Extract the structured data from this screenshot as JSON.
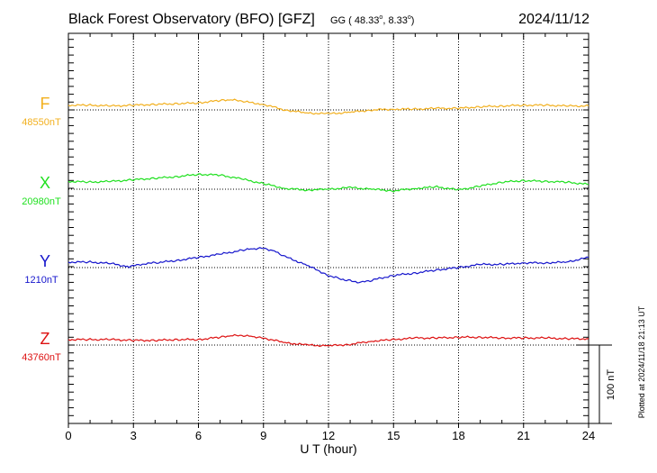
{
  "header": {
    "title": "Black Forest Observatory (BFO)  [GFZ]",
    "coords_prefix": "GG ( 48.33",
    "coords_mid": ",  8.33",
    "coords_suffix": ")",
    "degree_symbol": "o",
    "date": "2024/11/12"
  },
  "side_note": "Plotted at 2024/11/18 21:13 UT",
  "scale_label": "100 nT",
  "colors": {
    "F": "#f2b01f",
    "X": "#1fe01f",
    "Y": "#1515cc",
    "Z": "#dd1111",
    "axis": "#000000"
  },
  "chart_data": {
    "type": "line",
    "xlabel": "U T (hour)",
    "xlim": [
      0,
      24
    ],
    "x_ticks": [
      "0",
      "3",
      "6",
      "9",
      "12",
      "15",
      "18",
      "21",
      "24"
    ],
    "y_units_per_nt": "100 nT scale bar",
    "series": [
      {
        "name": "F",
        "baseline_label": "48550nT",
        "baseline_nt": 48550,
        "x": [
          0,
          1,
          2,
          3,
          4,
          5,
          6,
          7,
          7.5,
          8,
          9,
          10,
          11,
          12,
          13,
          14,
          15,
          16,
          17,
          18,
          19,
          20,
          21,
          22,
          23,
          24
        ],
        "y": [
          48556,
          48556,
          48555,
          48556,
          48557,
          48558,
          48559,
          48562,
          48563,
          48561,
          48557,
          48550,
          48546,
          48545,
          48547,
          48550,
          48551,
          48551,
          48552,
          48552,
          48554,
          48555,
          48556,
          48556,
          48555,
          48555
        ]
      },
      {
        "name": "X",
        "baseline_label": "20980nT",
        "baseline_nt": 20980,
        "x": [
          0,
          1,
          2,
          3,
          4,
          5,
          6,
          7,
          8,
          9,
          10,
          11,
          12,
          13,
          14,
          15,
          16,
          17,
          18,
          19,
          20,
          21,
          22,
          23,
          24
        ],
        "y": [
          20990,
          20989,
          20990,
          20992,
          20994,
          20996,
          20999,
          20998,
          20993,
          20987,
          20981,
          20979,
          20980,
          20982,
          20980,
          20978,
          20981,
          20983,
          20979,
          20984,
          20989,
          20991,
          20990,
          20989,
          20986
        ]
      },
      {
        "name": "Y",
        "baseline_label": "1210nT",
        "baseline_nt": 1210,
        "x": [
          0,
          1,
          2,
          2.8,
          3.5,
          4,
          5,
          6,
          7,
          8,
          8.5,
          9,
          9.5,
          10,
          11,
          12,
          12.5,
          13,
          13.5,
          14,
          15,
          16,
          17,
          18,
          19,
          20,
          21,
          22,
          23,
          24
        ],
        "y": [
          1217,
          1217,
          1215,
          1211,
          1215,
          1216,
          1219,
          1223,
          1227,
          1232,
          1234,
          1235,
          1231,
          1224,
          1213,
          1200,
          1196,
          1193,
          1191,
          1194,
          1200,
          1203,
          1207,
          1210,
          1214,
          1214,
          1216,
          1216,
          1217,
          1223
        ]
      },
      {
        "name": "Z",
        "baseline_label": "43760nT",
        "baseline_nt": 43760,
        "x": [
          0,
          1,
          2,
          3,
          4,
          5,
          6,
          7,
          7.5,
          8,
          8.5,
          9,
          10,
          11,
          12,
          13,
          14,
          15,
          16,
          17,
          18,
          19,
          20,
          21,
          22,
          23,
          24
        ],
        "y": [
          43767,
          43767,
          43767,
          43766,
          43766,
          43767,
          43767,
          43770,
          43772,
          43772,
          43771,
          43769,
          43763,
          43760,
          43759,
          43761,
          43765,
          43767,
          43769,
          43769,
          43770,
          43770,
          43769,
          43769,
          43769,
          43768,
          43768
        ]
      }
    ]
  }
}
